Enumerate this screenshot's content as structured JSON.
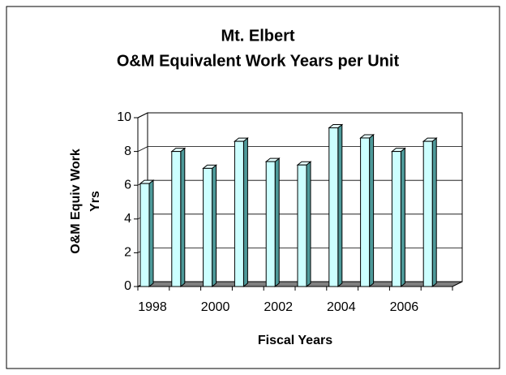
{
  "chart_data": {
    "type": "bar3d",
    "title": [
      "Mt. Elbert",
      "O&M Equivalent Work Years per Unit"
    ],
    "ylabel": [
      "O&M Equiv Work",
      "Yrs"
    ],
    "xlabel": "Fiscal Years",
    "categories": [
      "1998",
      null,
      "2000",
      null,
      "2002",
      null,
      "2004",
      null,
      "2006",
      null
    ],
    "values": [
      6.1,
      8.0,
      7.0,
      8.6,
      7.4,
      7.2,
      9.4,
      8.8,
      8.0,
      8.6
    ],
    "color": "#ccffff",
    "ylim": [
      0,
      10
    ],
    "yticks": [
      0,
      2,
      4,
      6,
      8,
      10
    ],
    "grid": true
  }
}
